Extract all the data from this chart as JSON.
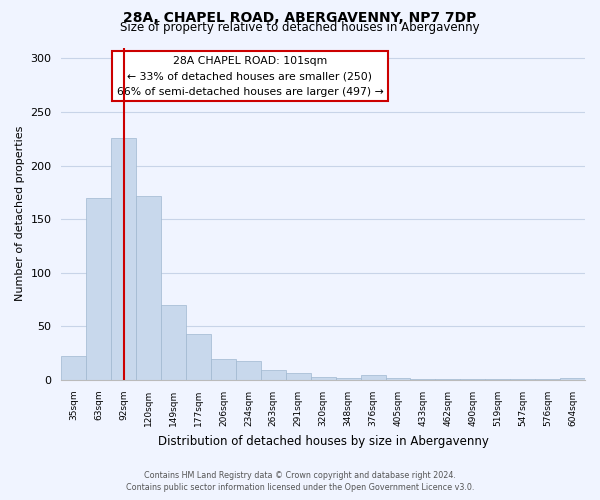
{
  "title": "28A, CHAPEL ROAD, ABERGAVENNY, NP7 7DP",
  "subtitle": "Size of property relative to detached houses in Abergavenny",
  "xlabel": "Distribution of detached houses by size in Abergavenny",
  "ylabel": "Number of detached properties",
  "bar_labels": [
    "35sqm",
    "63sqm",
    "92sqm",
    "120sqm",
    "149sqm",
    "177sqm",
    "206sqm",
    "234sqm",
    "263sqm",
    "291sqm",
    "320sqm",
    "348sqm",
    "376sqm",
    "405sqm",
    "433sqm",
    "462sqm",
    "490sqm",
    "519sqm",
    "547sqm",
    "576sqm",
    "604sqm"
  ],
  "bar_values": [
    22,
    170,
    226,
    172,
    70,
    43,
    20,
    18,
    9,
    7,
    3,
    2,
    5,
    2,
    1,
    1,
    1,
    1,
    1,
    1,
    2
  ],
  "bar_color": "#c8d8ec",
  "bar_edge_color": "#a0b8d0",
  "vline_x": 2,
  "vline_color": "#cc0000",
  "annotation_title": "28A CHAPEL ROAD: 101sqm",
  "annotation_line1": "← 33% of detached houses are smaller (250)",
  "annotation_line2": "66% of semi-detached houses are larger (497) →",
  "annotation_box_color": "#ffffff",
  "annotation_box_edge": "#cc0000",
  "ylim": [
    0,
    310
  ],
  "yticks": [
    0,
    50,
    100,
    150,
    200,
    250,
    300
  ],
  "footer_line1": "Contains HM Land Registry data © Crown copyright and database right 2024.",
  "footer_line2": "Contains public sector information licensed under the Open Government Licence v3.0.",
  "bg_color": "#f0f4ff",
  "grid_color": "#c8d4e8"
}
